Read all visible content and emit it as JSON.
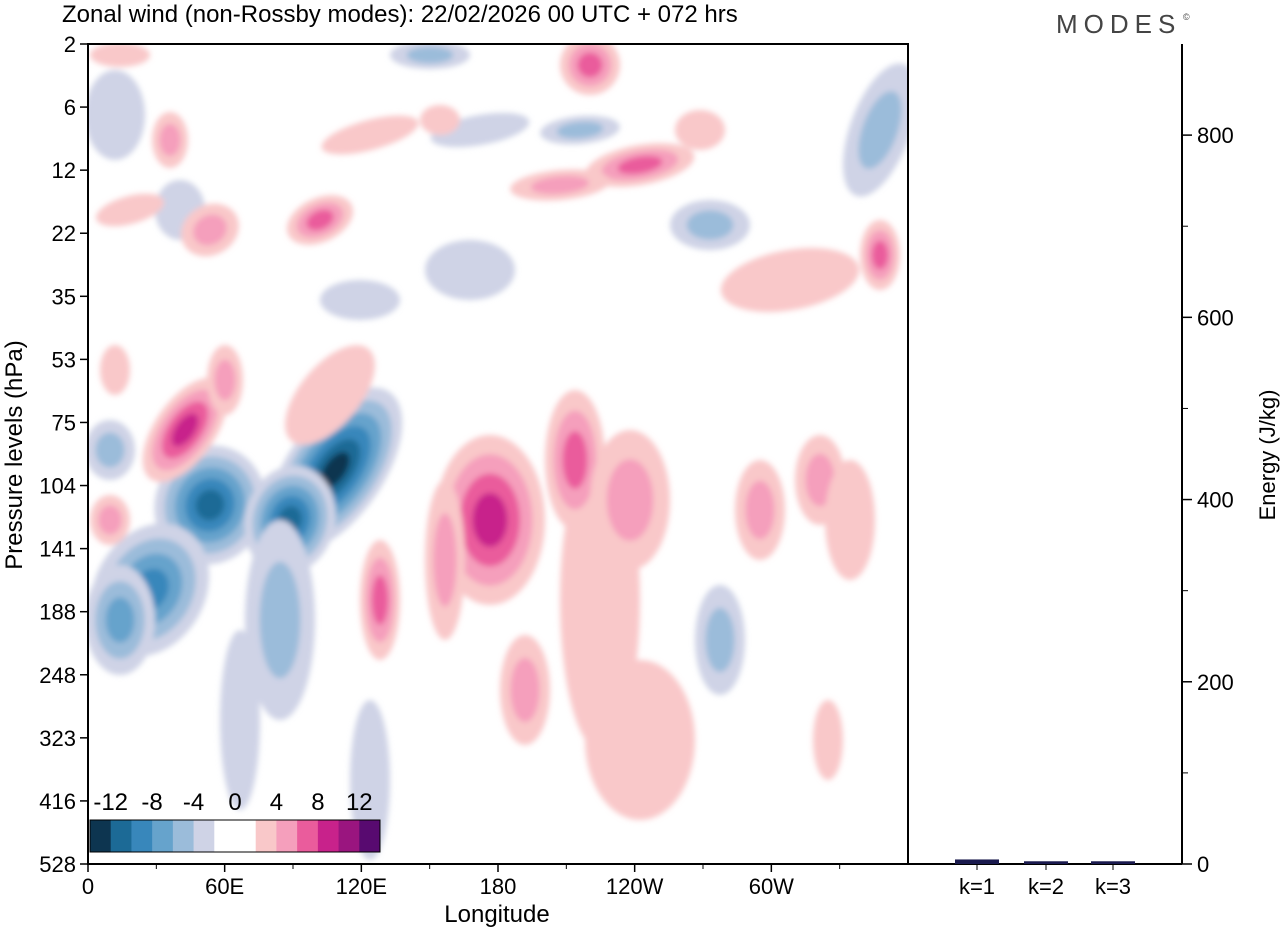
{
  "header": {
    "title": "Zonal wind (non-Rossby modes):  22/02/2026  00 UTC  + 072 hrs",
    "brand": "MODES",
    "brand_mark": "©"
  },
  "chart_data": [
    {
      "type": "heatmap",
      "title": "Zonal wind (non-Rossby modes):  22/02/2026  00 UTC  + 072 hrs",
      "xlabel": "Longitude",
      "ylabel": "Pressure levels (hPa)",
      "x_ticks": [
        "0",
        "60E",
        "120E",
        "180",
        "120W",
        "60W"
      ],
      "x_tick_degrees": [
        0,
        60,
        120,
        180,
        240,
        300
      ],
      "xlim": [
        0,
        360
      ],
      "y_levels": [
        "2",
        "6",
        "12",
        "22",
        "35",
        "53",
        "75",
        "104",
        "141",
        "188",
        "248",
        "323",
        "416",
        "528"
      ],
      "colorbar": {
        "labels": [
          "-12",
          "-8",
          "-4",
          "0",
          "4",
          "8",
          "12"
        ],
        "colors": [
          "#0d3550",
          "#1c6a96",
          "#3887bb",
          "#66a3cc",
          "#9bbcda",
          "#cfd3e6",
          "#ffffff",
          "#ffffff",
          "#f9c8c9",
          "#f59fbc",
          "#ea5c9c",
          "#c8228b",
          "#9a157f",
          "#580a70"
        ]
      },
      "features": [
        {
          "sign": "negative",
          "lon": 105,
          "level": "104",
          "value": -14
        },
        {
          "sign": "negative",
          "lon": 45,
          "level": "104",
          "value": -10
        },
        {
          "sign": "negative",
          "lon": 20,
          "level": "188",
          "value": -6
        },
        {
          "sign": "positive",
          "lon": 40,
          "level": "75",
          "value": 8
        },
        {
          "sign": "positive",
          "lon": 175,
          "level": "141",
          "value": 8
        },
        {
          "sign": "positive",
          "lon": 235,
          "level": "12",
          "value": 6
        }
      ]
    },
    {
      "type": "bar",
      "ylabel": "Energy (J/kg)",
      "categories": [
        "k=1",
        "k=2",
        "k=3"
      ],
      "values": [
        5,
        3,
        3
      ],
      "ylim": [
        0,
        900
      ],
      "y_ticks": [
        "0",
        "200",
        "400",
        "600",
        "800"
      ],
      "bar_color": "#1a1a4e"
    }
  ]
}
